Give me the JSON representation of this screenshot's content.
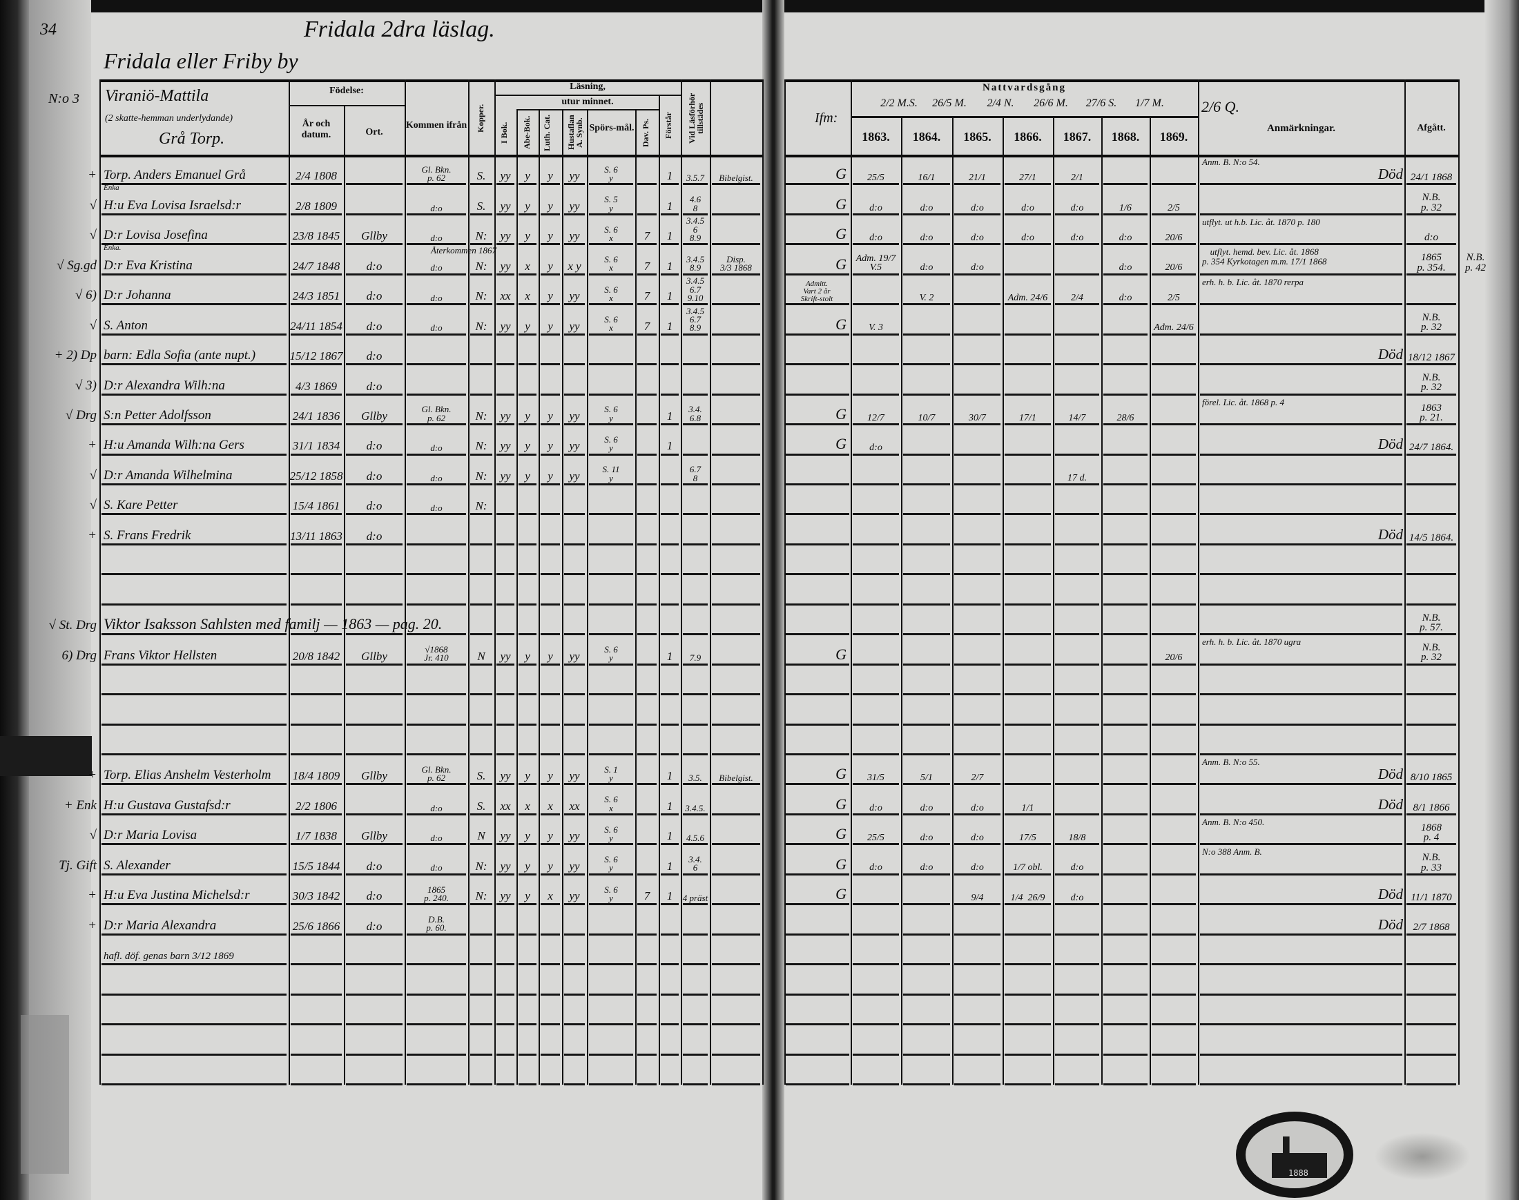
{
  "left_page": {
    "page_number": "34",
    "page_title": "Fridala 2dra läslag.",
    "village": "Fridala eller Friby by",
    "household_no": "N:o 3",
    "household_header": {
      "line1": "Viraniö-Mattila",
      "line2": "(2 skatte-hemman underlydande)",
      "line3": "Grå Torp."
    },
    "headers": {
      "fodelse": "Födelse:",
      "ar": "År och datum.",
      "ort": "Ort.",
      "kommen": "Kommen ifrån",
      "kopper": "Kopper.",
      "lasning": "Läsning,",
      "utur_minnet": "utur minnet.",
      "ibok": "I Bok.",
      "abe": "Abe-Bok.",
      "luth": "Luth. Cat.",
      "hust": "Hustaflan A. Synb.",
      "spors": "Spörs-mål.",
      "dav": "Dav. Ps.",
      "forstar": "Förstår",
      "vid": "Vid Läsförhör tillstädes"
    },
    "rows": [
      {
        "mark": "+",
        "name": "Torp. Anders Emanuel Grå",
        "date": "2/4 1808",
        "ort": "",
        "kommen": "Gl. Bkn.\np. 62",
        "kopper": "S.",
        "ibok": "yy",
        "abe": "y",
        "luth": "y",
        "hust": "yy",
        "spors": "S. 6\ny",
        "dav": "",
        "forstar": "1",
        "vid": "3.5.7",
        "extra": "Bibelgist."
      },
      {
        "mark": "√",
        "name": "H:u Eva Lovisa Israelsd:r",
        "above": "Enka",
        "date": "2/8 1809",
        "ort": "",
        "kommen": "d:o",
        "kopper": "S.",
        "ibok": "yy",
        "abe": "y",
        "luth": "y",
        "hust": "yy",
        "spors": "S. 5\ny",
        "dav": "",
        "forstar": "1",
        "vid": "4.6\n8",
        "extra": ""
      },
      {
        "mark": "√",
        "name": "D:r Lovisa Josefina",
        "date": "23/8 1845",
        "ort": "Gllby",
        "kommen": "d:o",
        "kopper": "N:",
        "ibok": "yy",
        "abe": "y",
        "luth": "y",
        "hust": "yy",
        "spors": "S. 6\nx",
        "dav": "7",
        "forstar": "1",
        "vid": "3.4.5\n6\n8.9",
        "extra": ""
      },
      {
        "mark": "√ Sg.gd",
        "name": "D:r Eva Kristina",
        "above": "Enka.",
        "date": "24/7 1848",
        "ort": "d:o",
        "kommen": "d:o",
        "knote": "Återkommen 1867",
        "kopper": "N:",
        "ibok": "yy",
        "abe": "x",
        "luth": "y",
        "hust": "x y",
        "spors": "S. 6\nx",
        "dav": "7",
        "forstar": "1",
        "vid": "3.4.5\n8.9",
        "extra": "Disp.\n3/3 1868"
      },
      {
        "mark": "√ 6)",
        "name": "D:r Johanna",
        "date": "24/3 1851",
        "ort": "d:o",
        "kommen": "d:o",
        "kopper": "N:",
        "ibok": "xx",
        "abe": "x",
        "luth": "y",
        "hust": "yy",
        "spors": "S. 6\nx",
        "dav": "7",
        "forstar": "1",
        "vid": "3.4.5\n6.7\n9.10",
        "extra": ""
      },
      {
        "mark": "√",
        "name": "S. Anton",
        "date": "24/11 1854",
        "ort": "d:o",
        "kommen": "d:o",
        "kopper": "N:",
        "ibok": "yy",
        "abe": "y",
        "luth": "y",
        "hust": "yy",
        "spors": "S. 6\nx",
        "dav": "7",
        "forstar": "1",
        "vid": "3.4.5\n6.7\n8.9",
        "extra": ""
      },
      {
        "mark": "+ 2) Dp",
        "name": "barn: Edla Sofia (ante nupt.)",
        "date": "15/12 1867",
        "ort": "d:o"
      },
      {
        "mark": "√ 3)",
        "name": "D:r Alexandra Wilh:na",
        "date": "4/3 1869",
        "ort": "d:o"
      },
      {
        "mark": "√ Drg",
        "name": "S:n Petter Adolfsson",
        "date": "24/1 1836",
        "ort": "Gllby",
        "kommen": "Gl. Bkn.\np. 62",
        "kopper": "N:",
        "ibok": "yy",
        "abe": "y",
        "luth": "y",
        "hust": "yy",
        "spors": "S. 6\ny",
        "dav": "",
        "forstar": "1",
        "vid": "3.4.\n6.8",
        "extra": ""
      },
      {
        "mark": "+",
        "name": "H:u Amanda Wilh:na Gers",
        "date": "31/1 1834",
        "ort": "d:o",
        "kommen": "d:o",
        "kopper": "N:",
        "ibok": "yy",
        "abe": "y",
        "luth": "y",
        "hust": "yy",
        "spors": "S. 6\ny",
        "dav": "",
        "forstar": "1",
        "vid": "",
        "extra": ""
      },
      {
        "mark": "√",
        "name": "D:r Amanda Wilhelmina",
        "date": "25/12 1858",
        "ort": "d:o",
        "kommen": "d:o",
        "kopper": "N:",
        "ibok": "yy",
        "abe": "y",
        "luth": "y",
        "hust": "yy",
        "spors": "S. 11\ny",
        "dav": "",
        "forstar": "",
        "vid": "6.7\n8",
        "extra": ""
      },
      {
        "mark": "√",
        "name": "S. Kare Petter",
        "date": "15/4 1861",
        "ort": "d:o",
        "kommen": "d:o",
        "kopper": "N:"
      },
      {
        "mark": "+",
        "name": "S. Frans Fredrik",
        "date": "13/11 1863",
        "ort": "d:o"
      },
      {},
      {},
      {
        "mark": "√ St. Drg",
        "wide": "Viktor Isaksson Sahlsten med familj — 1863 — pag. 20."
      },
      {
        "mark": "6) Drg",
        "name": "Frans Viktor Hellsten",
        "date": "20/8 1842",
        "ort": "Gllby",
        "kommen": "√1868\nJr. 410",
        "kopper": "N",
        "ibok": "yy",
        "abe": "y",
        "luth": "y",
        "hust": "yy",
        "spors": "S. 6\ny",
        "dav": "",
        "forstar": "1",
        "vid": "7.9",
        "extra": ""
      },
      {},
      {},
      {},
      {
        "mark": "+",
        "name": "Torp. Elias Anshelm Vesterholm",
        "date": "18/4 1809",
        "ort": "Gllby",
        "kommen": "Gl. Bkn.\np. 62",
        "kopper": "S.",
        "ibok": "yy",
        "abe": "y",
        "luth": "y",
        "hust": "yy",
        "spors": "S. 1\ny",
        "dav": "",
        "forstar": "1",
        "vid": "3.5.",
        "extra": "Bibelgist."
      },
      {
        "mark": "+ Enk",
        "name": "H:u Gustava Gustafsd:r",
        "date": "2/2 1806",
        "ort": "",
        "kommen": "d:o",
        "kopper": "S.",
        "ibok": "xx",
        "abe": "x",
        "luth": "x",
        "hust": "xx",
        "spors": "S. 6\nx",
        "dav": "",
        "forstar": "1",
        "vid": "3.4.5.",
        "extra": ""
      },
      {
        "mark": "√",
        "name": "D:r Maria Lovisa",
        "date": "1/7 1838",
        "ort": "Gllby",
        "kommen": "d:o",
        "kopper": "N",
        "ibok": "yy",
        "abe": "y",
        "luth": "y",
        "hust": "yy",
        "spors": "S. 6\ny",
        "dav": "",
        "forstar": "1",
        "vid": "4.5.6",
        "extra": ""
      },
      {
        "mark": "Tj. Gift",
        "name": "S. Alexander",
        "date": "15/5 1844",
        "ort": "d:o",
        "kommen": "d:o",
        "kopper": "N:",
        "ibok": "yy",
        "abe": "y",
        "luth": "y",
        "hust": "yy",
        "spors": "S. 6\ny",
        "dav": "",
        "forstar": "1",
        "vid": "3.4.\n6",
        "extra": ""
      },
      {
        "mark": "+",
        "name": "H:u Eva Justina Michelsd:r",
        "date": "30/3 1842",
        "ort": "d:o",
        "kommen": "1865\np. 240.",
        "kopper": "N:",
        "ibok": "yy",
        "abe": "y",
        "luth": "x",
        "hust": "yy",
        "spors": "S. 6\ny",
        "dav": "7",
        "forstar": "1",
        "vid": "4 präst",
        "extra": ""
      },
      {
        "mark": "+",
        "name": "D:r Maria Alexandra",
        "date": "25/6 1866",
        "ort": "d:o",
        "kommen": "D.B.\np. 60.",
        "note": "hafl. döf. genas barn 3/12 1869"
      },
      {},
      {},
      {},
      {},
      {}
    ]
  },
  "right_page": {
    "headers": {
      "first": "Ifm:",
      "nattvard": "Nattvardsgång",
      "years": [
        "1863.",
        "1864.",
        "1865.",
        "1866.",
        "1867.",
        "1868.",
        "1869."
      ],
      "year_notes": [
        "2/2 M.S.",
        "26/5 M.",
        "2/4 N.",
        "26/6 M.",
        "27/6 S.",
        "1/7 M."
      ],
      "extra_note": "2/6 Q.",
      "anm": "Anmärkningar.",
      "afgatt": "Afgått."
    },
    "rows": [
      {
        "pre": "G",
        "n": [
          "25/5",
          "16/1",
          "21/1",
          "27/1",
          "2/1",
          "",
          ""
        ],
        "remark": "Anm. B. N:o 54.",
        "dod": "Död",
        "afgatt": "24/1 1868"
      },
      {
        "pre": "G",
        "n": [
          "d:o",
          "d:o",
          "d:o",
          "d:o",
          "d:o",
          "1/6",
          "2/5"
        ],
        "afgatt": "N.B.\np. 32"
      },
      {
        "pre": "G",
        "n": [
          "d:o",
          "d:o",
          "d:o",
          "d:o",
          "d:o",
          "d:o",
          "20/6"
        ],
        "remark": "utflyt. ut h.b. Lic. åt. 1870 p. 180",
        "afgatt": "d:o"
      },
      {
        "pre": "G",
        "n": [
          "Adm. 19/7\nV.5",
          "d:o",
          "d:o",
          "",
          "",
          "d:o",
          "20/6"
        ],
        "remark": "utflyt. hemd. bev. Lic. åt. 1868\np. 354 Kyrkotagen m.m. 17/1 1868",
        "afgatt": "1865\np. 354.",
        "side": "N.B.\np. 42"
      },
      {
        "pre": "Admitt.\nVart 2 år\nSkrift-stolt",
        "n": [
          "",
          "V. 2",
          "",
          "Adm. 24/6",
          "2/4",
          "d:o",
          "2/5"
        ],
        "remark": "erh. h. b. Lic. åt. 1870 rerpa"
      },
      {
        "pre": "G",
        "n": [
          "V. 3",
          "",
          "",
          "",
          "",
          "",
          "Adm. 24/6"
        ],
        "afgatt": "N.B.\np. 32"
      },
      {
        "dod": "Död",
        "afgatt": "18/12 1867"
      },
      {
        "afgatt": "N.B.\np. 32"
      },
      {
        "pre": "G",
        "n": [
          "12/7",
          "10/7",
          "30/7",
          "17/1",
          "14/7",
          "28/6",
          ""
        ],
        "remark": "förel. Lic. åt. 1868 p. 4",
        "afgatt": "1863\np. 21."
      },
      {
        "pre": "G",
        "n": [
          "d:o",
          "",
          "",
          "",
          "",
          "",
          ""
        ],
        "dod": "Död",
        "afgatt": "24/7 1864."
      },
      {
        "n": [
          "",
          "",
          "",
          "",
          "17 d.",
          "",
          ""
        ]
      },
      {},
      {
        "dod": "Död",
        "afgatt": "14/5 1864."
      },
      {},
      {},
      {
        "afgatt": "N.B.\np. 57."
      },
      {
        "pre": "G",
        "n": [
          "",
          "",
          "",
          "",
          "",
          "",
          "20/6"
        ],
        "remark": "erh. h. b. Lic. åt. 1870 ugra",
        "afgatt": "N.B.\np. 32"
      },
      {},
      {},
      {},
      {
        "pre": "G",
        "n": [
          "31/5",
          "5/1",
          "2/7",
          "",
          "",
          "",
          ""
        ],
        "remark": "Anm. B. N:o 55.",
        "dod": "Död",
        "afgatt": "8/10 1865"
      },
      {
        "pre": "G",
        "n": [
          "d:o",
          "d:o",
          "d:o",
          "1/1",
          "",
          "",
          ""
        ],
        "dod": "Död",
        "afgatt": "8/1 1866"
      },
      {
        "pre": "G",
        "n": [
          "25/5",
          "d:o",
          "d:o",
          "17/5",
          "18/8",
          "",
          ""
        ],
        "remark": "Anm. B. N:o 450.",
        "afgatt": "1868\np. 4"
      },
      {
        "pre": "G",
        "n": [
          "d:o",
          "d:o",
          "d:o",
          "1/7 obl.",
          "d:o",
          "",
          ""
        ],
        "remark": "N:o 388 Anm. B.",
        "afgatt": "N.B.\np. 33"
      },
      {
        "pre": "G",
        "n": [
          "",
          "",
          "9/4",
          "1/4  26/9",
          "d:o",
          "",
          ""
        ],
        "dod": "Död",
        "afgatt": "11/1 1870"
      },
      {
        "dod": "Död",
        "afgatt": "2/7 1868"
      },
      {},
      {},
      {},
      {},
      {}
    ]
  },
  "stamp": {
    "text": "Stamp with church",
    "year": "1888"
  }
}
